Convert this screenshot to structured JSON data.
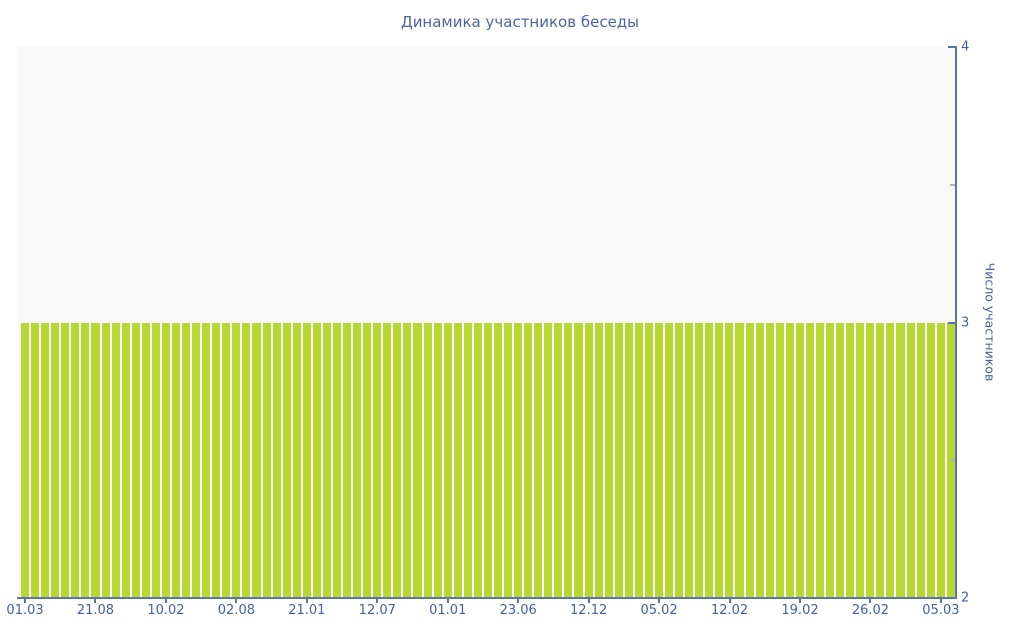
{
  "title": "Динамика участников беседы",
  "colors": {
    "bar": "#b6d932",
    "bar_gap": "#ffffff",
    "text": "#47619e",
    "title_text": "#4a64a4",
    "axis_line": "#5b74ad",
    "minor_tick": "#b3b3b3",
    "plot_background": "#f8f8f8",
    "page_background": "#ffffff"
  },
  "y_axis": {
    "title": "Число участников",
    "tick_labels": [
      "4",
      "3",
      "2"
    ],
    "major_tick_values": [
      4,
      3,
      2
    ],
    "minor_tick_values": [
      3.5,
      2.5
    ]
  },
  "x_axis": {
    "tick_labels": [
      "01.03",
      "21.08",
      "10.02",
      "02.08",
      "21.01",
      "12.07",
      "01.01",
      "23.06",
      "12.12",
      "05.02",
      "12.02",
      "19.02",
      "26.02",
      "05.03"
    ],
    "label_every": 7
  },
  "chart_data": {
    "type": "bar",
    "title": "Динамика участников беседы",
    "xlabel": "",
    "ylabel": "Число участников",
    "ylim": [
      2,
      4
    ],
    "grid": false,
    "legend": "none",
    "x_tick_labels": [
      "01.03",
      "21.08",
      "10.02",
      "02.08",
      "21.01",
      "12.07",
      "01.01",
      "23.06",
      "12.12",
      "05.02",
      "12.02",
      "19.02",
      "26.02",
      "05.03"
    ],
    "label_every": 7,
    "bar_count": 93,
    "values": [
      3,
      3,
      3,
      3,
      3,
      3,
      3,
      3,
      3,
      3,
      3,
      3,
      3,
      3,
      3,
      3,
      3,
      3,
      3,
      3,
      3,
      3,
      3,
      3,
      3,
      3,
      3,
      3,
      3,
      3,
      3,
      3,
      3,
      3,
      3,
      3,
      3,
      3,
      3,
      3,
      3,
      3,
      3,
      3,
      3,
      3,
      3,
      3,
      3,
      3,
      3,
      3,
      3,
      3,
      3,
      3,
      3,
      3,
      3,
      3,
      3,
      3,
      3,
      3,
      3,
      3,
      3,
      3,
      3,
      3,
      3,
      3,
      3,
      3,
      3,
      3,
      3,
      3,
      3,
      3,
      3,
      3,
      3,
      3,
      3,
      3,
      3,
      3,
      3,
      3,
      3,
      3,
      3
    ]
  }
}
